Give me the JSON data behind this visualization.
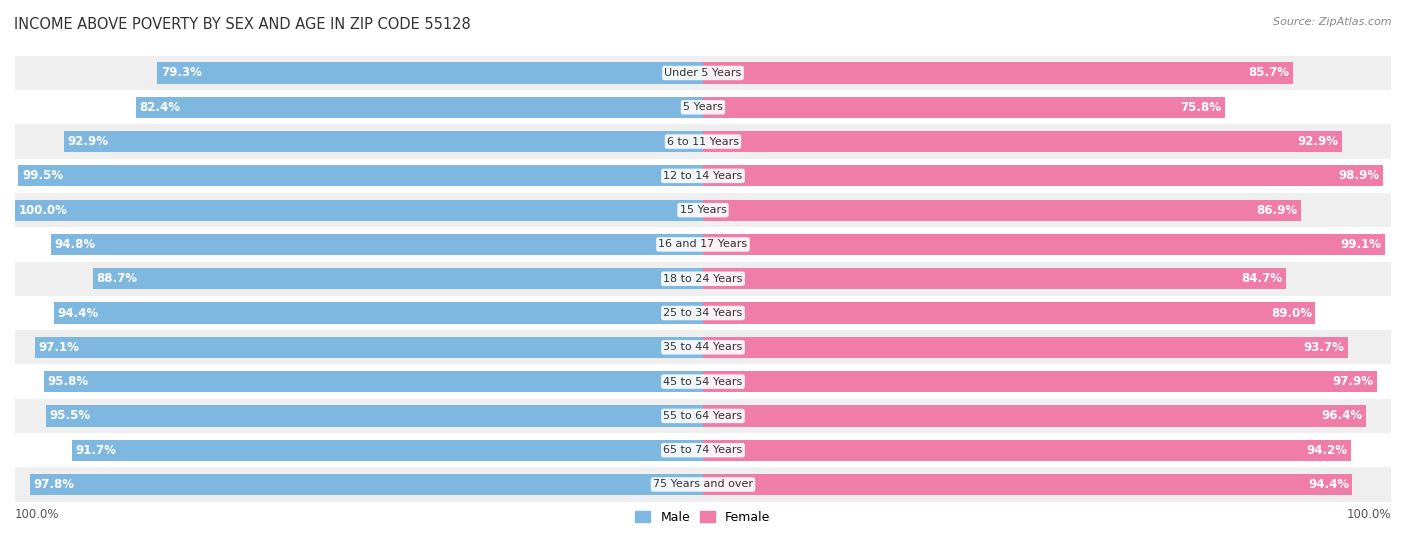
{
  "title": "INCOME ABOVE POVERTY BY SEX AND AGE IN ZIP CODE 55128",
  "source": "Source: ZipAtlas.com",
  "categories": [
    "Under 5 Years",
    "5 Years",
    "6 to 11 Years",
    "12 to 14 Years",
    "15 Years",
    "16 and 17 Years",
    "18 to 24 Years",
    "25 to 34 Years",
    "35 to 44 Years",
    "45 to 54 Years",
    "55 to 64 Years",
    "65 to 74 Years",
    "75 Years and over"
  ],
  "male": [
    79.3,
    82.4,
    92.9,
    99.5,
    100.0,
    94.8,
    88.7,
    94.4,
    97.1,
    95.8,
    95.5,
    91.7,
    97.8
  ],
  "female": [
    85.7,
    75.8,
    92.9,
    98.9,
    86.9,
    99.1,
    84.7,
    89.0,
    93.7,
    97.9,
    96.4,
    94.2,
    94.4
  ],
  "male_color": "#7eb8e0",
  "female_color": "#f07ca8",
  "background_color": "#ffffff",
  "row_bg_light": "#efefef",
  "row_bg_dark": "#e0e0e0",
  "bar_height": 0.62,
  "title_fontsize": 10.5,
  "source_fontsize": 8,
  "label_fontsize": 8.5,
  "category_fontsize": 8,
  "legend_fontsize": 9,
  "axis_max": 100.0
}
